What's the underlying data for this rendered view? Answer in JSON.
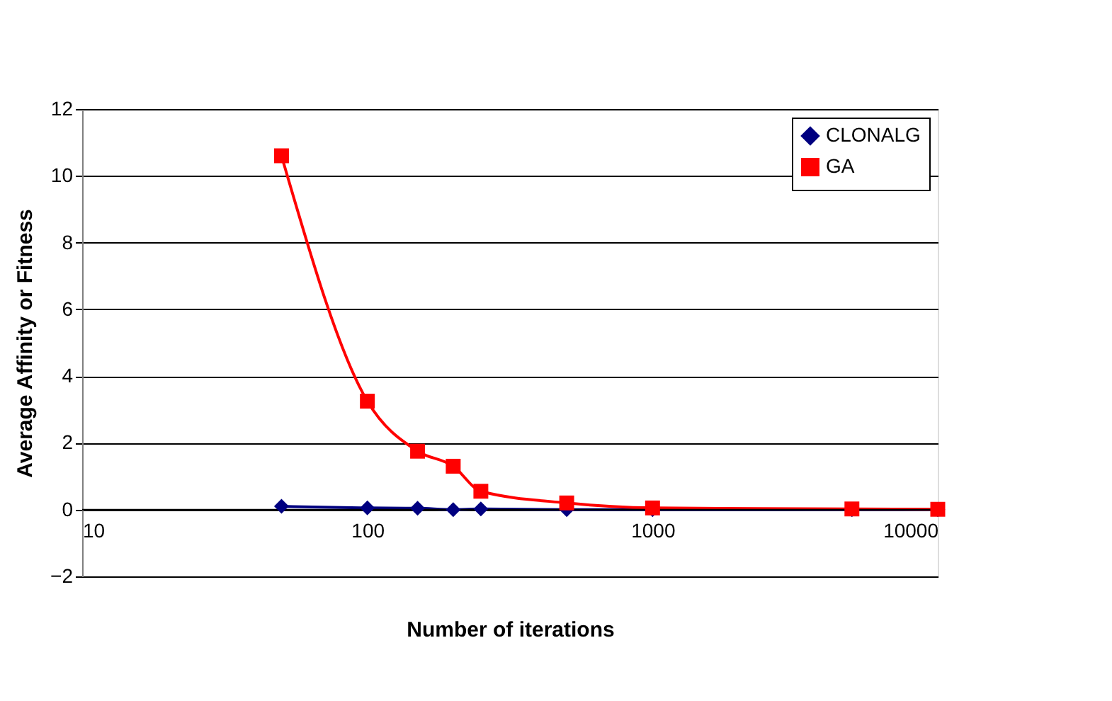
{
  "chart_data": {
    "type": "line",
    "xlabel": "Number of iterations",
    "ylabel": "Average Affinity or Fitness",
    "x": [
      50,
      100,
      150,
      200,
      250,
      500,
      1000,
      5000,
      10000
    ],
    "series": [
      {
        "name": "CLONALG",
        "color": "#000080",
        "marker": "diamond",
        "values": [
          0.1,
          0.05,
          0.04,
          0.0,
          0.02,
          0.0,
          0.0,
          0.0,
          0.0
        ]
      },
      {
        "name": "GA",
        "color": "#ff0000",
        "marker": "square",
        "values": [
          10.6,
          3.25,
          1.75,
          1.3,
          0.55,
          0.2,
          0.05,
          0.02,
          0.01
        ]
      }
    ],
    "log": "x",
    "xlim": [
      10,
      10000
    ],
    "xticks": [
      10,
      100,
      1000,
      10000
    ],
    "ylim": [
      -2,
      12
    ],
    "yticks": [
      -2,
      0,
      2,
      4,
      6,
      8,
      10,
      12
    ],
    "grid": "y",
    "legend": "top right",
    "line_style": "solid"
  }
}
